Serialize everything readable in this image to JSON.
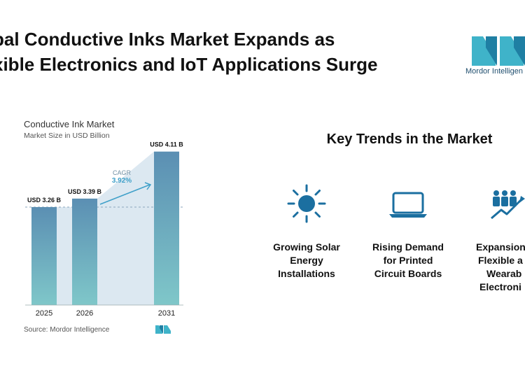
{
  "headline": {
    "line1": "bal Conductive Inks Market Expands as",
    "line2": "xible Electronics and IoT Applications Surge"
  },
  "logo": {
    "text": "Mordor Intelligen"
  },
  "chart_data": {
    "type": "bar",
    "title": "Conductive Ink Market",
    "subtitle": "Market Size in USD Billion",
    "categories": [
      "2025",
      "2026",
      "2031"
    ],
    "values": [
      3.26,
      3.39,
      4.11
    ],
    "value_labels": [
      "USD 3.26 B",
      "USD 3.39 B",
      "USD 4.11 B"
    ],
    "cagr_label": "CAGR",
    "cagr_value": "3.92%",
    "source": "Source: Mordor Intelligence",
    "colors": {
      "bar_top": "#5b8fb3",
      "bar_bottom": "#7fc7c9",
      "band": "#dce8f1",
      "accent": "#3fa0c9"
    }
  },
  "trends": {
    "title": "Key Trends in the Market",
    "items": [
      {
        "icon": "sun-icon",
        "lines": [
          "Growing Solar",
          "Energy",
          "Installations"
        ]
      },
      {
        "icon": "laptop-icon",
        "lines": [
          "Rising Demand",
          "for Printed",
          "Circuit Boards"
        ]
      },
      {
        "icon": "growth-people-icon",
        "lines": [
          "Expansion",
          "Flexible a",
          "Wearab",
          "Electroni"
        ]
      }
    ]
  }
}
